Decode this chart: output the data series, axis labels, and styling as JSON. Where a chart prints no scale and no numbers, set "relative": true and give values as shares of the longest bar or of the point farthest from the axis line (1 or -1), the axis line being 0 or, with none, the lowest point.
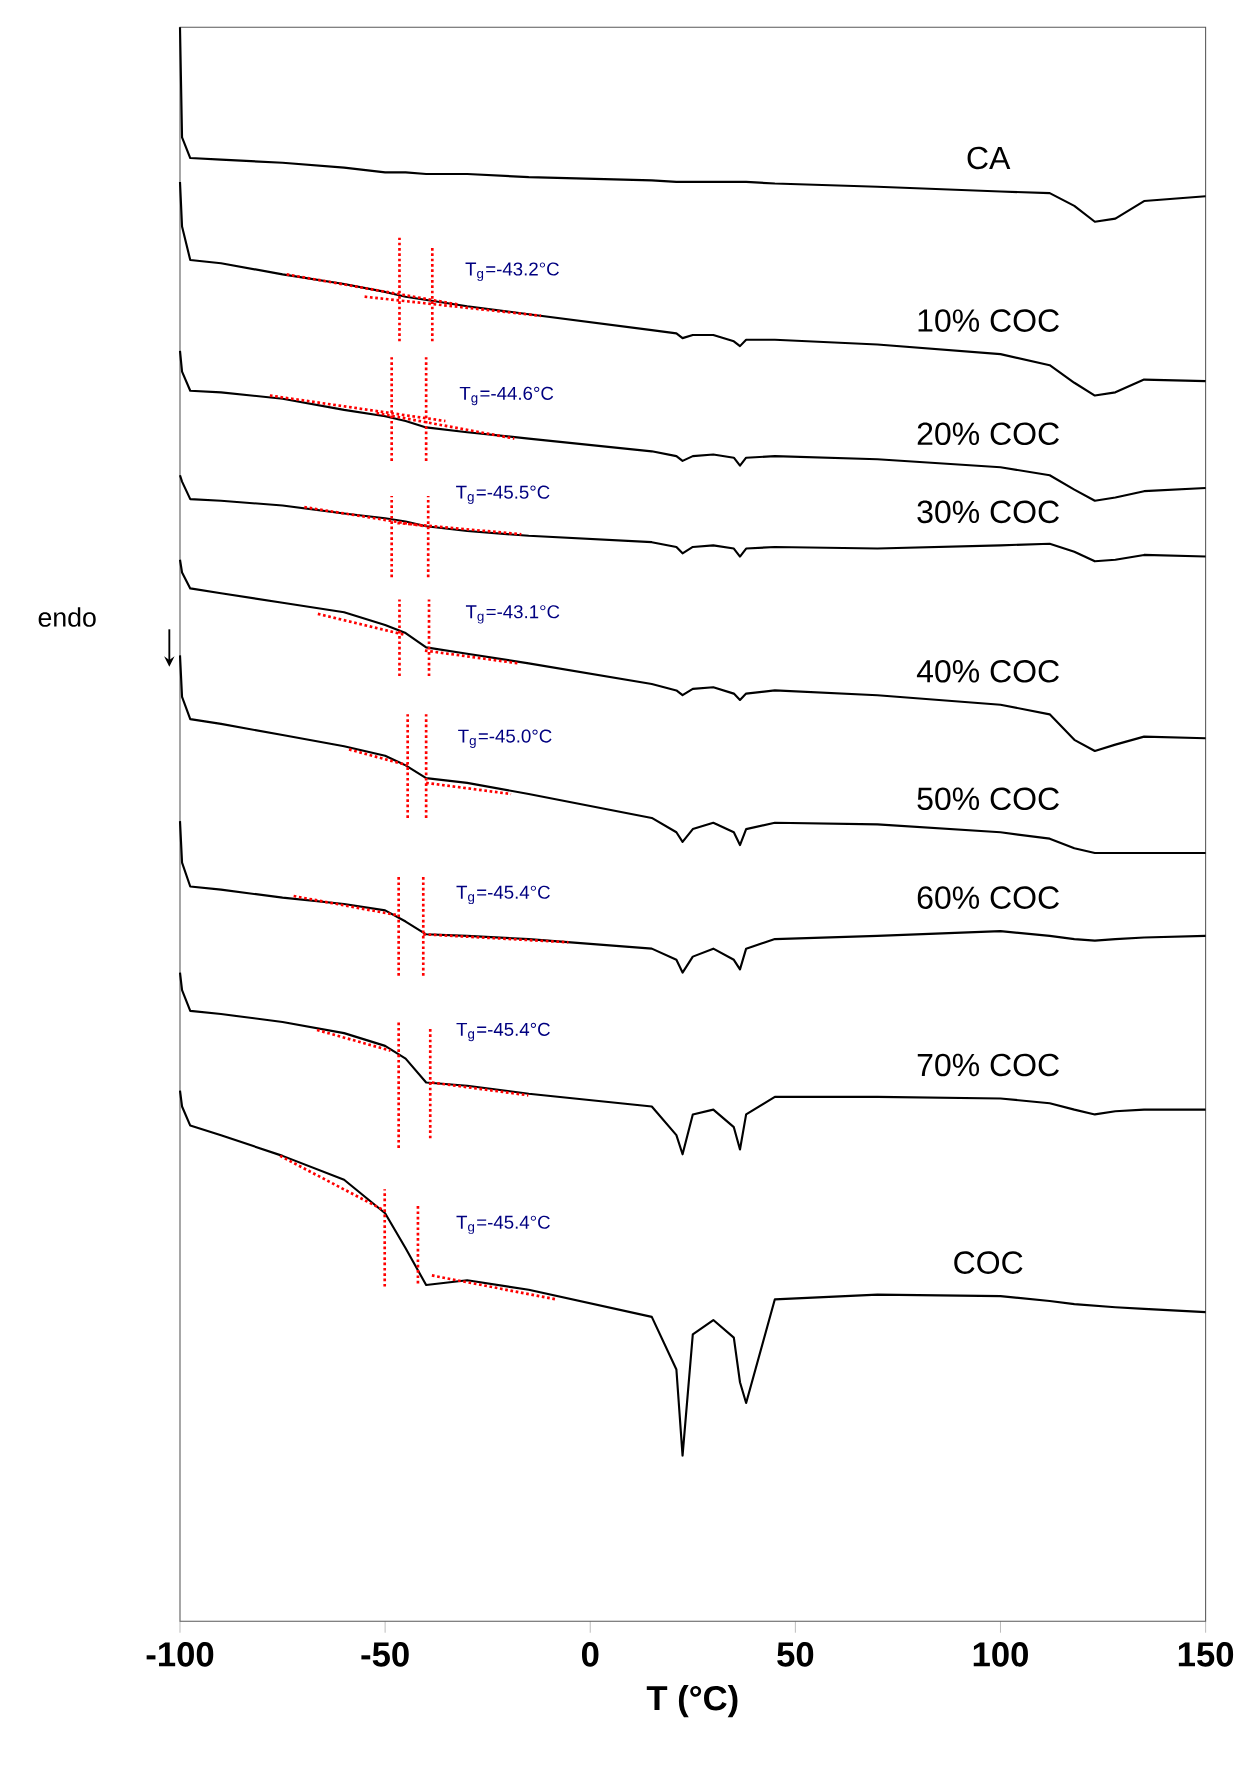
{
  "chart_data": {
    "type": "line",
    "relative": true,
    "xlabel": "T (°C)",
    "ylabel": "endo",
    "xlim": [
      -100,
      150
    ],
    "xticks": [
      -100,
      -50,
      0,
      50,
      100,
      150
    ],
    "tick_labels": "x",
    "marker": "none",
    "line_style": "solid",
    "x": [
      -100,
      -99.5,
      -97.5,
      -90,
      -75,
      -60,
      -50,
      -45,
      -40,
      -30,
      -15,
      15,
      21,
      22.5,
      25,
      30,
      35,
      36.5,
      38,
      45,
      70,
      100,
      112,
      118,
      123,
      128,
      135,
      150
    ],
    "series": [
      {
        "name": "CA",
        "color": "#000000",
        "values": [
          1.0,
          0.931,
          0.918,
          0.917,
          0.915,
          0.912,
          0.909,
          0.909,
          0.908,
          0.908,
          0.906,
          0.904,
          0.903,
          0.903,
          0.903,
          0.903,
          0.903,
          0.903,
          0.903,
          0.902,
          0.9,
          0.897,
          0.896,
          0.888,
          0.878,
          0.88,
          0.891,
          0.894
        ]
      },
      {
        "name": "10% COC",
        "color": "#000000",
        "values": [
          0.903,
          0.875,
          0.854,
          0.852,
          0.845,
          0.839,
          0.834,
          0.831,
          0.829,
          0.825,
          0.82,
          0.81,
          0.808,
          0.805,
          0.807,
          0.807,
          0.803,
          0.8,
          0.804,
          0.804,
          0.801,
          0.795,
          0.788,
          0.777,
          0.769,
          0.771,
          0.779,
          0.778
        ]
      },
      {
        "name": "20% COC",
        "color": "#000000",
        "values": [
          0.797,
          0.784,
          0.772,
          0.771,
          0.767,
          0.76,
          0.756,
          0.753,
          0.749,
          0.746,
          0.742,
          0.734,
          0.731,
          0.728,
          0.731,
          0.732,
          0.73,
          0.725,
          0.73,
          0.731,
          0.729,
          0.724,
          0.719,
          0.71,
          0.703,
          0.705,
          0.709,
          0.711
        ]
      },
      {
        "name": "30% COC",
        "color": "#000000",
        "values": [
          0.719,
          0.715,
          0.704,
          0.703,
          0.7,
          0.695,
          0.692,
          0.69,
          0.687,
          0.684,
          0.681,
          0.677,
          0.674,
          0.67,
          0.674,
          0.675,
          0.673,
          0.668,
          0.673,
          0.674,
          0.673,
          0.675,
          0.676,
          0.671,
          0.665,
          0.666,
          0.669,
          0.668
        ]
      },
      {
        "name": "40% COC",
        "color": "#000000",
        "values": [
          0.666,
          0.658,
          0.648,
          0.645,
          0.639,
          0.633,
          0.625,
          0.62,
          0.611,
          0.607,
          0.601,
          0.588,
          0.584,
          0.581,
          0.585,
          0.586,
          0.582,
          0.578,
          0.582,
          0.584,
          0.581,
          0.575,
          0.569,
          0.553,
          0.546,
          0.55,
          0.555,
          0.554
        ]
      },
      {
        "name": "50% COC",
        "color": "#000000",
        "values": [
          0.606,
          0.58,
          0.566,
          0.563,
          0.556,
          0.549,
          0.543,
          0.537,
          0.529,
          0.526,
          0.519,
          0.504,
          0.495,
          0.489,
          0.497,
          0.501,
          0.495,
          0.487,
          0.497,
          0.501,
          0.5,
          0.495,
          0.491,
          0.485,
          0.482,
          0.482,
          0.482,
          0.482
        ]
      },
      {
        "name": "60% COC",
        "color": "#000000",
        "values": [
          0.502,
          0.476,
          0.461,
          0.459,
          0.454,
          0.45,
          0.446,
          0.439,
          0.431,
          0.43,
          0.428,
          0.422,
          0.415,
          0.407,
          0.417,
          0.422,
          0.415,
          0.409,
          0.422,
          0.428,
          0.43,
          0.433,
          0.43,
          0.428,
          0.427,
          0.428,
          0.429,
          0.43
        ]
      },
      {
        "name": "70% COC",
        "color": "#000000",
        "values": [
          0.407,
          0.396,
          0.383,
          0.381,
          0.376,
          0.369,
          0.361,
          0.353,
          0.338,
          0.336,
          0.331,
          0.323,
          0.305,
          0.293,
          0.318,
          0.321,
          0.31,
          0.296,
          0.318,
          0.329,
          0.329,
          0.328,
          0.325,
          0.321,
          0.318,
          0.32,
          0.321,
          0.321
        ]
      },
      {
        "name": "COC",
        "color": "#000000",
        "values": [
          0.333,
          0.323,
          0.311,
          0.305,
          0.292,
          0.277,
          0.256,
          0.234,
          0.211,
          0.214,
          0.208,
          0.191,
          0.158,
          0.104,
          0.18,
          0.189,
          0.178,
          0.15,
          0.137,
          0.202,
          0.205,
          0.204,
          0.201,
          0.199,
          0.198,
          0.197,
          0.196,
          0.194
        ]
      },
      {
        "color": "#ff0000",
        "line_style": "dotted",
        "x": [
          -46.5,
          -46.5,
          null,
          -38.5,
          -38.5,
          null,
          -74,
          -32,
          null,
          -55,
          -12
        ],
        "values": [
          0.803,
          0.868,
          null,
          0.803,
          0.863,
          null,
          0.845,
          0.826,
          null,
          0.831,
          0.819
        ]
      },
      {
        "color": "#ff0000",
        "line_style": "dotted",
        "x": [
          -48.4,
          -48.4,
          null,
          -40,
          -40,
          null,
          -78.1,
          -35.3,
          null,
          -52.1,
          -18.5
        ],
        "values": [
          0.728,
          0.793,
          null,
          0.728,
          0.793,
          null,
          0.769,
          0.753,
          null,
          0.758,
          0.742
        ]
      },
      {
        "color": "#ff0000",
        "line_style": "dotted",
        "x": [
          -48.4,
          -48.4,
          null,
          -39.5,
          -39.5,
          null,
          -69.7,
          -40.3,
          null,
          -47,
          -16.8
        ],
        "values": [
          0.655,
          0.706,
          null,
          0.655,
          0.706,
          null,
          0.699,
          0.687,
          null,
          0.689,
          0.682
        ]
      },
      {
        "color": "#ff0000",
        "line_style": "dotted",
        "x": [
          -46.5,
          -46.5,
          null,
          -39.3,
          -39.3,
          null,
          -66.4,
          -45.4,
          null,
          -40.3,
          -17.6
        ],
        "values": [
          0.593,
          0.641,
          null,
          0.593,
          0.641,
          null,
          0.632,
          0.619,
          null,
          0.609,
          0.601
        ]
      },
      {
        "color": "#ff0000",
        "line_style": "dotted",
        "x": [
          -44.5,
          -44.5,
          null,
          -40,
          -40,
          null,
          -58.8,
          -44.5,
          null,
          -40,
          -19.3
        ],
        "values": [
          0.504,
          0.569,
          null,
          0.504,
          0.569,
          null,
          0.547,
          0.537,
          null,
          0.526,
          0.519
        ]
      },
      {
        "color": "#ff0000",
        "line_style": "dotted",
        "x": [
          -46.7,
          -46.7,
          null,
          -40.7,
          -40.7,
          null,
          -72.3,
          -47,
          null,
          -40.7,
          -5.3
        ],
        "values": [
          0.405,
          0.468,
          null,
          0.405,
          0.468,
          null,
          0.455,
          0.443,
          null,
          0.431,
          0.426
        ]
      },
      {
        "color": "#ff0000",
        "line_style": "dotted",
        "x": [
          -46.7,
          -46.7,
          null,
          -39,
          -39,
          null,
          -66.6,
          -48.7,
          null,
          -38.6,
          -15.1
        ],
        "values": [
          0.297,
          0.376,
          null,
          0.303,
          0.372,
          null,
          0.371,
          0.358,
          null,
          0.338,
          0.33
        ]
      },
      {
        "color": "#ff0000",
        "line_style": "dotted",
        "x": [
          -50.1,
          -50.1,
          null,
          -42,
          -42,
          null,
          -75.6,
          -50.4,
          null,
          -38.6,
          -8.4
        ],
        "values": [
          0.21,
          0.271,
          null,
          0.212,
          0.262,
          null,
          0.292,
          0.258,
          null,
          0.217,
          0.202
        ]
      }
    ],
    "annotations": [
      {
        "text": "T$_{g}$=-43.2°C",
        "x": -43.2,
        "y": 0.83
      },
      {
        "text": "T$_{g}$=-44.6°C",
        "x": -44.6,
        "y": 0.752
      },
      {
        "text": "T$_{g}$=-45.5°C",
        "x": -45.5,
        "y": 0.69
      },
      {
        "text": "T$_{g}$=-43.1°C",
        "x": -43.1,
        "y": 0.615
      },
      {
        "text": "T$_{g}$=-45.0°C",
        "x": -45.0,
        "y": 0.537
      },
      {
        "text": "T$_{g}$=-45.4°C",
        "x": -45.4,
        "y": 0.439
      },
      {
        "text": "T$_{g}$=-45.4°C",
        "x": -45.4,
        "y": 0.353
      },
      {
        "text": "T$_{g}$=-45.4°C",
        "x": -45.4,
        "y": 0.232
      }
    ]
  }
}
